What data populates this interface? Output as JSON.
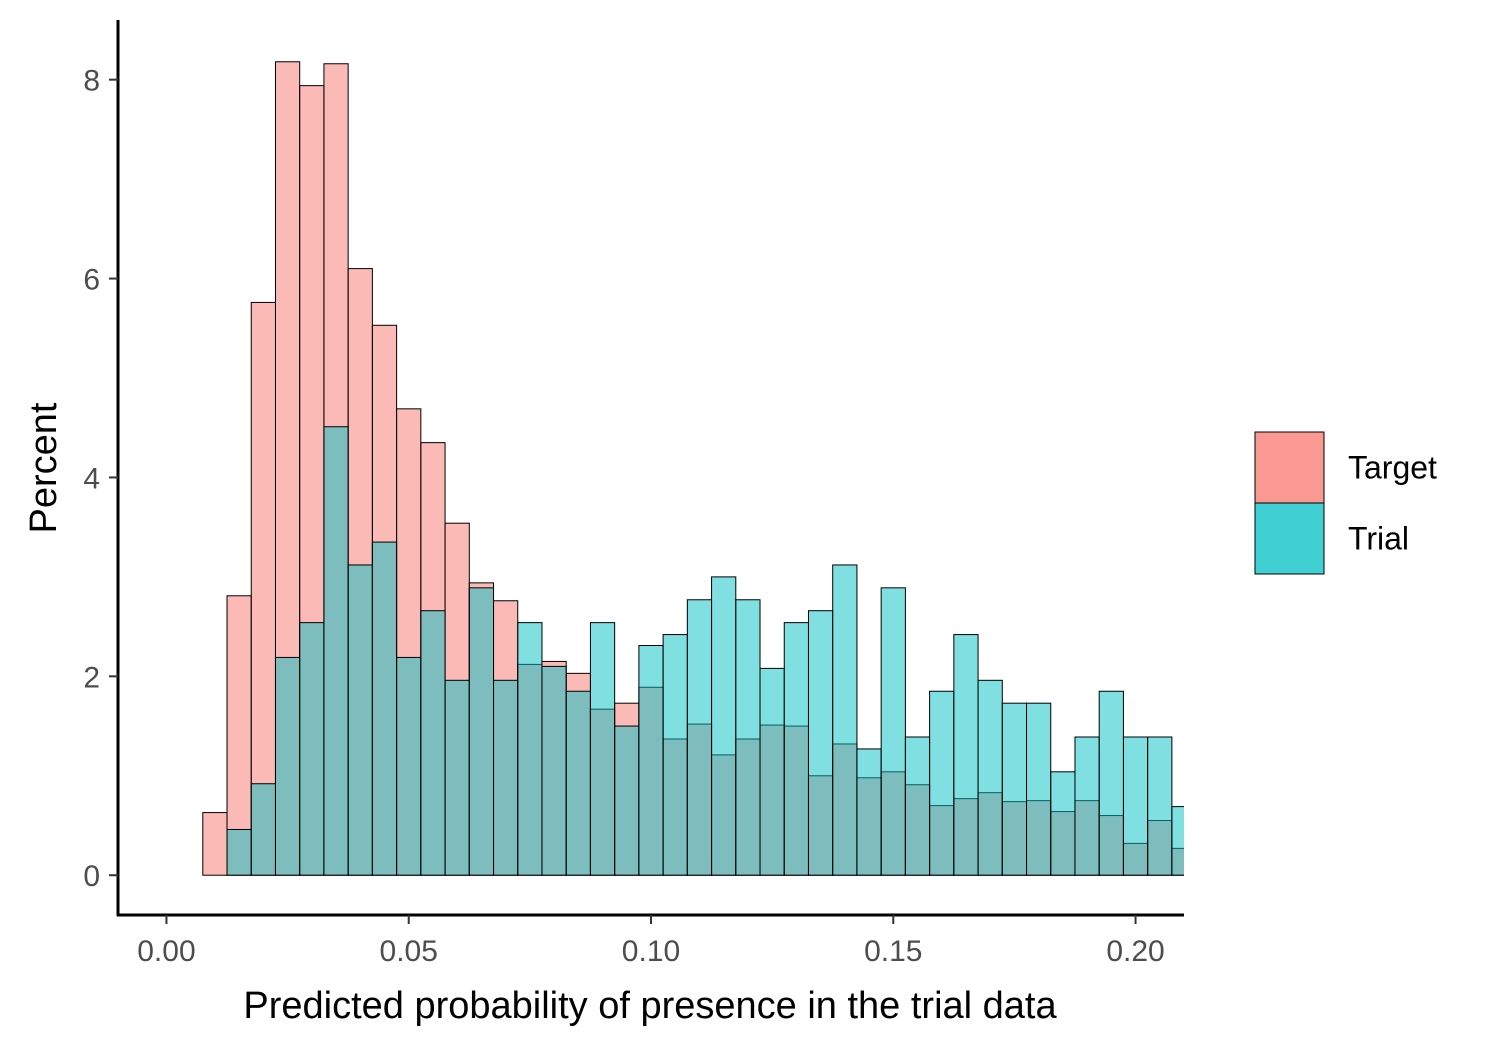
{
  "chart_data": {
    "type": "bar",
    "subtype": "overlapping-histogram",
    "title": "",
    "xlabel": "Predicted probability of presence in the trial data",
    "ylabel": "Percent",
    "xlim": [
      -0.01,
      0.21
    ],
    "ylim": [
      -0.4,
      8.6
    ],
    "x_ticks": [
      0.0,
      0.05,
      0.1,
      0.15,
      0.2
    ],
    "x_tick_labels": [
      "0.00",
      "0.05",
      "0.10",
      "0.15",
      "0.20"
    ],
    "y_ticks": [
      0,
      2,
      4,
      6,
      8
    ],
    "y_tick_labels": [
      "0",
      "2",
      "4",
      "6",
      "8"
    ],
    "grid": false,
    "legend_position": "right",
    "bin_width": 0.005,
    "bin_starts": [
      0.0075,
      0.0125,
      0.0175,
      0.0225,
      0.0275,
      0.0325,
      0.0375,
      0.0425,
      0.0475,
      0.0525,
      0.0575,
      0.0625,
      0.0675,
      0.0725,
      0.0775,
      0.0825,
      0.0875,
      0.0925,
      0.0975,
      0.1025,
      0.1075,
      0.1125,
      0.1175,
      0.1225,
      0.1275,
      0.1325,
      0.1375,
      0.1425,
      0.1475,
      0.1525,
      0.1575,
      0.1625,
      0.1675,
      0.1725,
      0.1775,
      0.1825,
      0.1875,
      0.1925,
      0.1975,
      0.2025,
      0.2075
    ],
    "series": [
      {
        "name": "Target",
        "color": "#F8766D",
        "values": [
          0.63,
          2.81,
          5.76,
          8.18,
          7.94,
          8.16,
          6.1,
          5.53,
          4.69,
          4.35,
          3.54,
          2.94,
          2.76,
          2.12,
          2.15,
          2.03,
          1.67,
          1.73,
          1.89,
          1.37,
          1.52,
          1.21,
          1.37,
          1.51,
          1.5,
          1.0,
          1.32,
          0.98,
          1.04,
          0.91,
          0.7,
          0.77,
          0.83,
          0.74,
          0.75,
          0.64,
          0.75,
          0.6,
          0.32,
          0.55,
          0.27
        ]
      },
      {
        "name": "Trial",
        "color": "#00BFC4",
        "values": [
          0.0,
          0.46,
          0.92,
          2.19,
          2.54,
          4.51,
          3.12,
          3.35,
          2.19,
          2.66,
          1.96,
          2.89,
          1.96,
          2.54,
          2.1,
          1.85,
          2.54,
          1.5,
          2.31,
          2.42,
          2.77,
          3.0,
          2.77,
          2.08,
          2.54,
          2.66,
          3.12,
          1.27,
          2.89,
          1.39,
          1.85,
          2.42,
          1.96,
          1.73,
          1.73,
          1.04,
          1.39,
          1.85,
          1.39,
          1.39,
          0.69
        ]
      }
    ]
  }
}
